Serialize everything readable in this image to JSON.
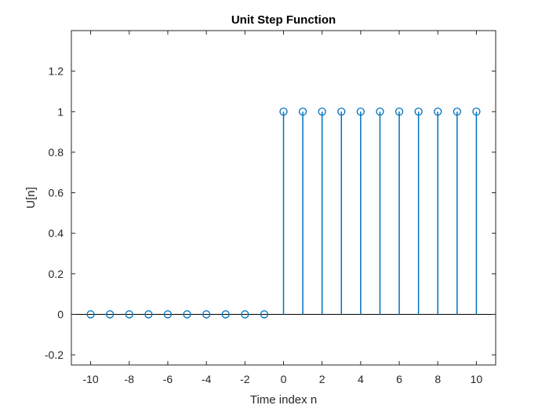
{
  "chart_data": {
    "type": "stem",
    "title": "Unit Step Function",
    "xlabel": "Time index n",
    "ylabel": "U[n]",
    "xlim": [
      -11,
      11
    ],
    "ylim": [
      -0.25,
      1.4
    ],
    "x_ticks": [
      -10,
      -8,
      -6,
      -4,
      -2,
      0,
      2,
      4,
      6,
      8,
      10
    ],
    "y_ticks": [
      -0.2,
      0,
      0.2,
      0.4,
      0.6,
      0.8,
      1,
      1.2
    ],
    "grid": false,
    "x": [
      -10,
      -9,
      -8,
      -7,
      -6,
      -5,
      -4,
      -3,
      -2,
      -1,
      0,
      1,
      2,
      3,
      4,
      5,
      6,
      7,
      8,
      9,
      10
    ],
    "values": [
      0,
      0,
      0,
      0,
      0,
      0,
      0,
      0,
      0,
      0,
      1,
      1,
      1,
      1,
      1,
      1,
      1,
      1,
      1,
      1,
      1
    ],
    "color": "#0072BD",
    "baseline": 0
  }
}
